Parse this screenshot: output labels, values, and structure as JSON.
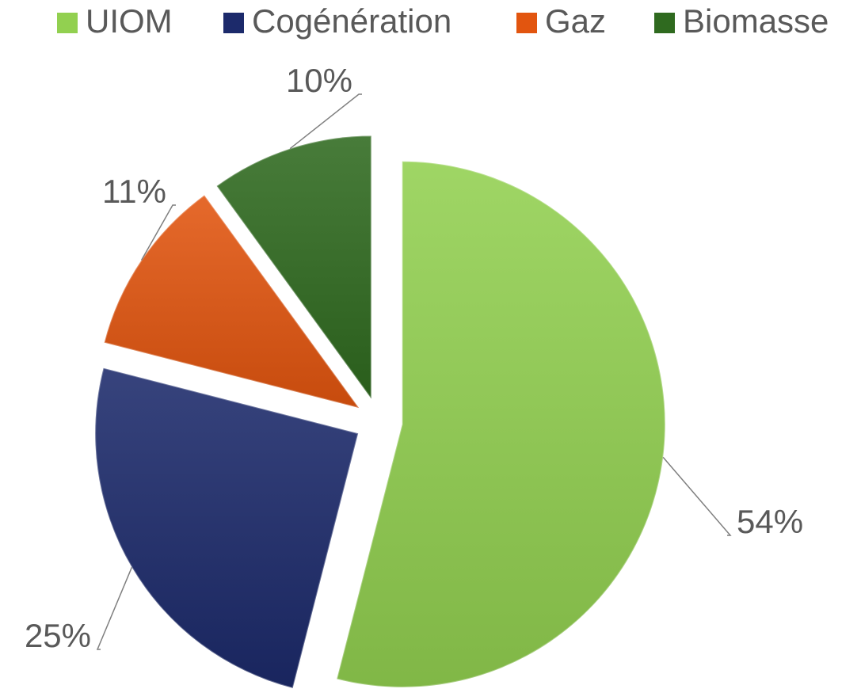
{
  "chart_data": {
    "type": "pie",
    "categories": [
      "UIOM",
      "Cogénération",
      "Gaz",
      "Biomasse"
    ],
    "values": [
      54,
      25,
      11,
      10
    ],
    "value_labels": [
      "54%",
      "25%",
      "11%",
      "10%"
    ],
    "colors": [
      "#92d050",
      "#1c2a6b",
      "#e2550f",
      "#2f6a1f"
    ]
  }
}
